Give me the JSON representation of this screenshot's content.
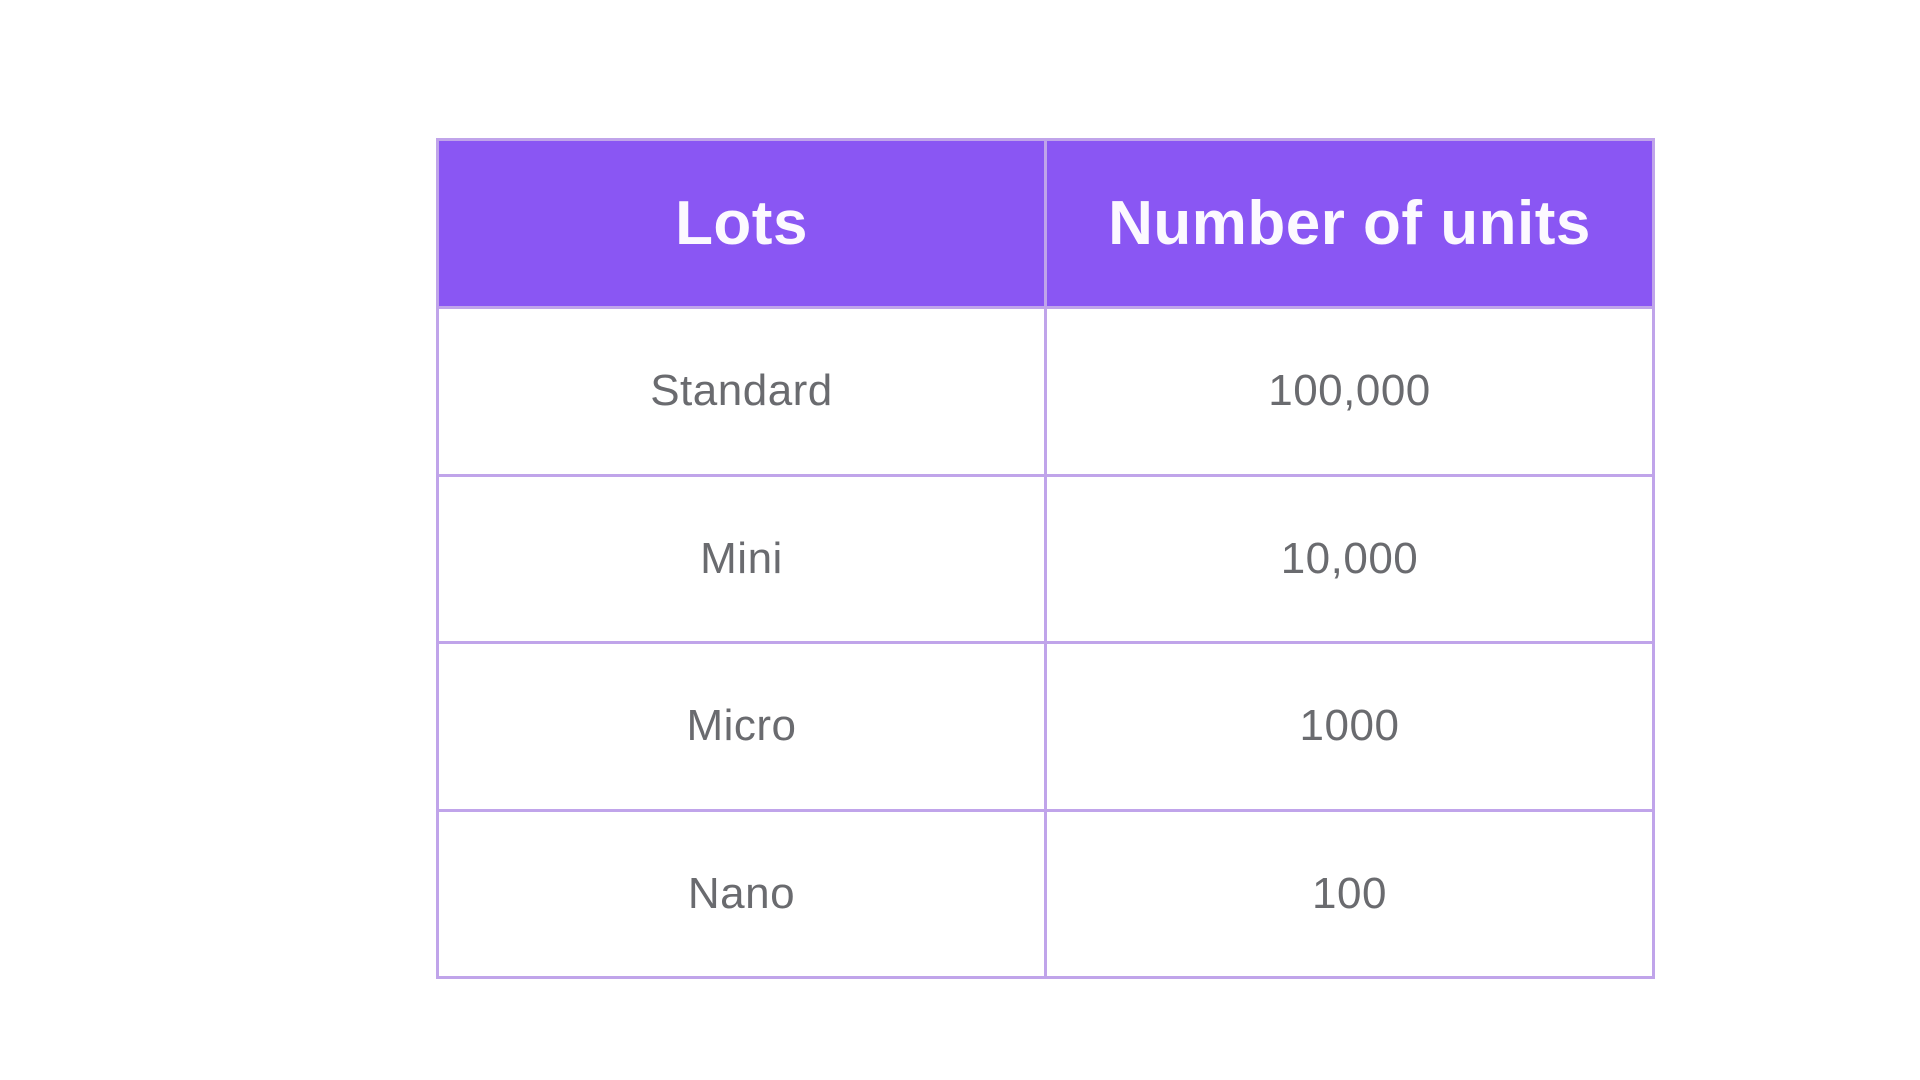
{
  "colors": {
    "page_bg": "#ffffff",
    "header_bg": "#8a56f3",
    "header_text": "#fcf9ff",
    "cell_text": "#6a6b6f",
    "grid_border": "#c0a4ea"
  },
  "table": {
    "headers": [
      "Lots",
      "Number of units"
    ],
    "rows": [
      {
        "lot": "Standard",
        "units": "100,000"
      },
      {
        "lot": "Mini",
        "units": "10,000"
      },
      {
        "lot": "Micro",
        "units": "1000"
      },
      {
        "lot": "Nano",
        "units": "100"
      }
    ]
  },
  "chart_data": {
    "type": "table",
    "columns": [
      "Lots",
      "Number of units"
    ],
    "rows": [
      [
        "Standard",
        "100,000"
      ],
      [
        "Mini",
        "10,000"
      ],
      [
        "Micro",
        "1000"
      ],
      [
        "Nano",
        "100"
      ]
    ],
    "values_numeric": [
      100000,
      10000,
      1000,
      100
    ],
    "layout_hints": {
      "header_fill": "#8a56f3",
      "header_text_color": "#fcf9ff",
      "grid": true,
      "grid_color": "#c0a4ea",
      "columns_equal_width": true,
      "text_align": "center"
    }
  }
}
